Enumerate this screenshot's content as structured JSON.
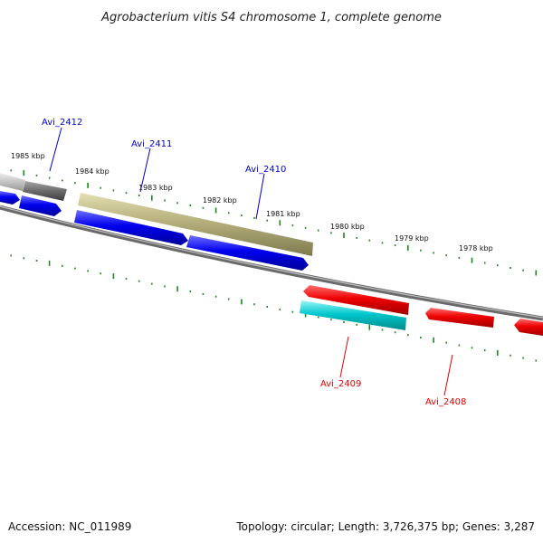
{
  "title": "Agrobacterium vitis S4 chromosome 1, complete genome",
  "accession": "Accession: NC_011989",
  "summary": "Topology: circular; Length: 3,726,375 bp; Genes: 3,287",
  "kbp_labels": [
    "1985 kbp",
    "1984 kbp",
    "1983 kbp",
    "1982 kbp",
    "1981 kbp",
    "1980 kbp",
    "1979 kbp",
    "1978 kbp"
  ],
  "gene_labels": [
    {
      "text": "Avi_2412",
      "color": "#0000cc"
    },
    {
      "text": "Avi_2411",
      "color": "#0000cc"
    },
    {
      "text": "Avi_2410",
      "color": "#0000cc"
    },
    {
      "text": "Avi_2409",
      "color": "#dd0000"
    },
    {
      "text": "Avi_2408",
      "color": "#dd0000"
    }
  ],
  "colors": {
    "forward_gene": "#0000ee",
    "reverse_gene": "#ee0000",
    "rna_feature": "#00c8cc",
    "olive_feature": "#b5b07c",
    "grey_feature": "#707070",
    "light_feature": "#c8c8c8",
    "backbone": "#808080",
    "ticks": "#1a8a1a"
  }
}
